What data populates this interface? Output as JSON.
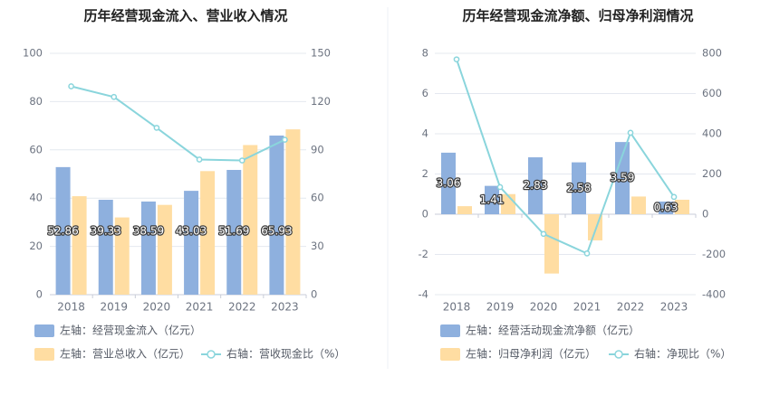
{
  "colors": {
    "bar_blue": "#8EB0DE",
    "bar_orange": "#FFDDA2",
    "line": "#8AD5DC",
    "grid": "#E4E8EF",
    "axis_text": "#6C7380",
    "title": "#222222",
    "legend_text": "#555b66"
  },
  "chart_data": [
    {
      "type": "bar",
      "title": "历年经营现金流入、营业收入情况",
      "categories": [
        "2018",
        "2019",
        "2020",
        "2021",
        "2022",
        "2023"
      ],
      "y_left": {
        "ticks": [
          "0",
          "20",
          "40",
          "60",
          "80",
          "100"
        ],
        "ylim": [
          0,
          100
        ]
      },
      "y_right": {
        "ticks": [
          "0",
          "30",
          "60",
          "90",
          "120",
          "150"
        ],
        "ylim": [
          0,
          150
        ]
      },
      "series": [
        {
          "name": "左轴：经营现金流入（亿元）",
          "axis": "left",
          "kind": "bar",
          "color": "#8EB0DE",
          "values": [
            52.86,
            39.33,
            38.59,
            43.03,
            51.69,
            65.93
          ],
          "labels": [
            "52.86",
            "39.33",
            "38.59",
            "43.03",
            "51.69",
            "65.93"
          ]
        },
        {
          "name": "左轴：营业总收入（亿元）",
          "axis": "left",
          "kind": "bar",
          "color": "#FFDDA2",
          "values": [
            40.8,
            32.0,
            37.2,
            51.2,
            62.0,
            68.5
          ]
        },
        {
          "name": "右轴：营收现金比（%）",
          "axis": "right",
          "kind": "line",
          "color": "#8AD5DC",
          "values": [
            129.5,
            122.9,
            103.7,
            84.0,
            83.4,
            96.3
          ]
        }
      ],
      "legend_position": "bottom-left"
    },
    {
      "type": "bar",
      "title": "历年经营现金流净额、归母净利润情况",
      "categories": [
        "2018",
        "2019",
        "2020",
        "2021",
        "2022",
        "2023"
      ],
      "y_left": {
        "ticks": [
          "-4",
          "-2",
          "0",
          "2",
          "4",
          "6",
          "8"
        ],
        "ylim": [
          -4,
          8
        ]
      },
      "y_right": {
        "ticks": [
          "-400",
          "-200",
          "0",
          "200",
          "400",
          "600",
          "800"
        ],
        "ylim": [
          -400,
          800
        ]
      },
      "series": [
        {
          "name": "左轴：经营活动现金流净额（亿元）",
          "axis": "left",
          "kind": "bar",
          "color": "#8EB0DE",
          "values": [
            3.06,
            1.41,
            2.83,
            2.58,
            3.59,
            0.63
          ],
          "labels": [
            "3.06",
            "1.41",
            "2.83",
            "2.58",
            "3.59",
            "0.63"
          ]
        },
        {
          "name": "左轴：归母净利润（亿元）",
          "axis": "left",
          "kind": "bar",
          "color": "#FFDDA2",
          "values": [
            0.4,
            1.0,
            -2.95,
            -1.3,
            0.88,
            0.72
          ]
        },
        {
          "name": "右轴：净现比（%）",
          "axis": "right",
          "kind": "line",
          "color": "#8AD5DC",
          "values": [
            770,
            135,
            -98,
            -195,
            405,
            86
          ]
        }
      ],
      "legend_position": "bottom-left"
    }
  ]
}
